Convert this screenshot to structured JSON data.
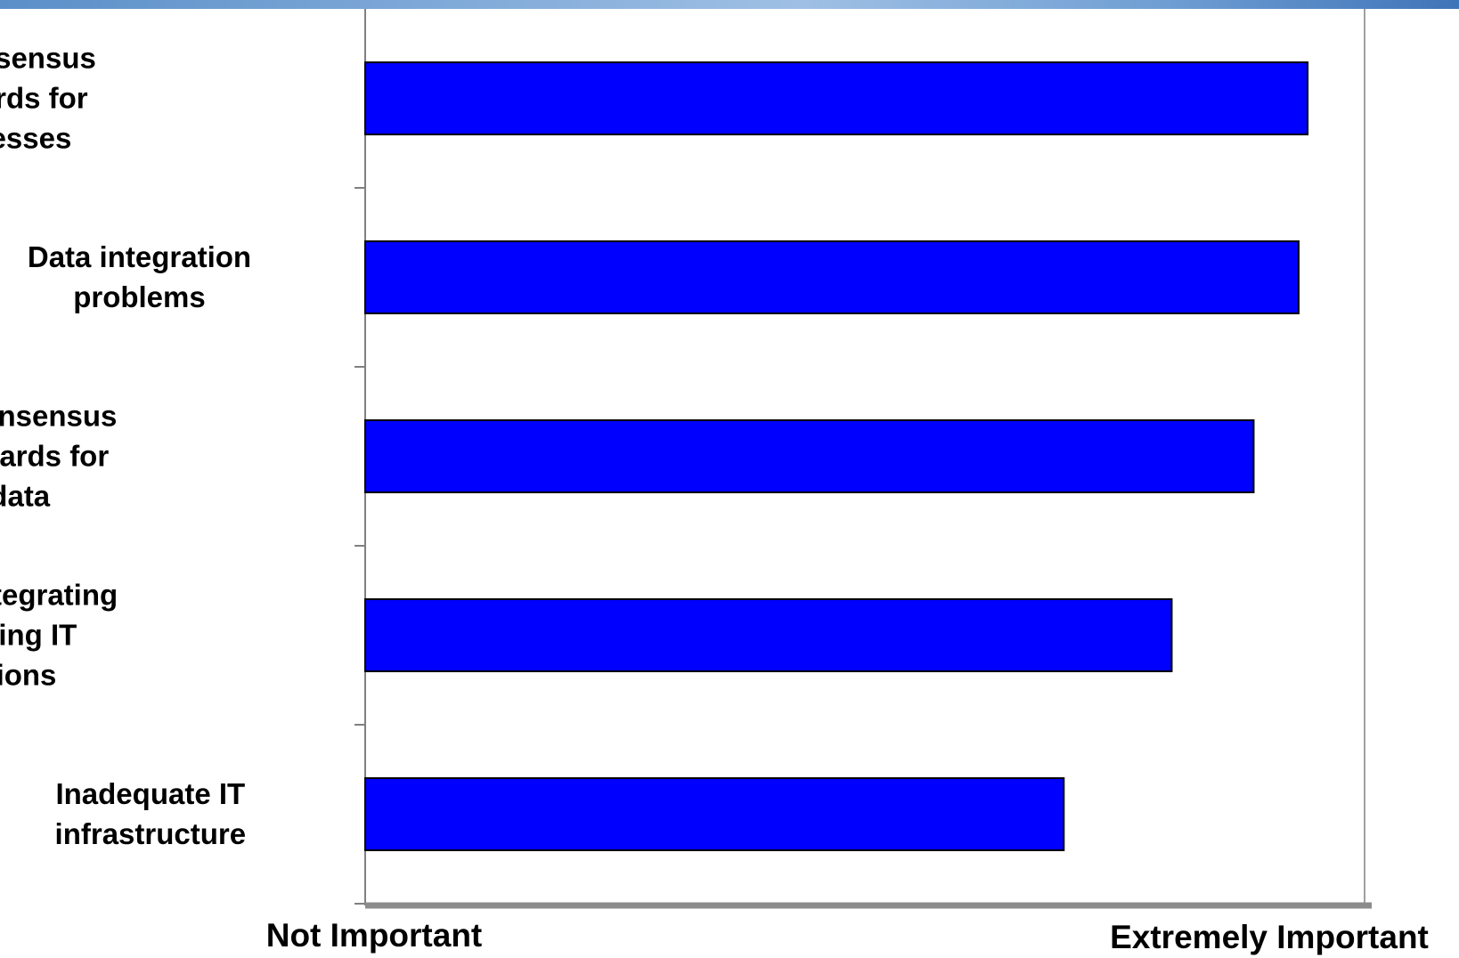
{
  "chart_data": {
    "type": "bar",
    "orientation": "horizontal",
    "categories": [
      "Lack of consensus and standards for NPD processes",
      "Data integration problems",
      "Lack of consensus and standards for NPD data",
      "Problems integrating with existing IT applications",
      "Inadequate IT infrastructure"
    ],
    "category_lines": [
      [
        "Lack of consensus",
        "and standards for",
        "NPD processes"
      ],
      [
        "Data integration",
        "problems"
      ],
      [
        "Lack of consensus",
        "and standards for",
        "NPD data"
      ],
      [
        "Problems integrating",
        "with existing IT",
        "applications"
      ],
      [
        "Inadequate IT",
        "infrastructure"
      ]
    ],
    "values": [
      0.943,
      0.934,
      0.889,
      0.807,
      0.699
    ],
    "xlim": [
      0,
      1
    ],
    "x_min_label": "Not Important",
    "x_max_label": "Extremely Important",
    "bar_color": "#0000ff",
    "grid": false
  }
}
